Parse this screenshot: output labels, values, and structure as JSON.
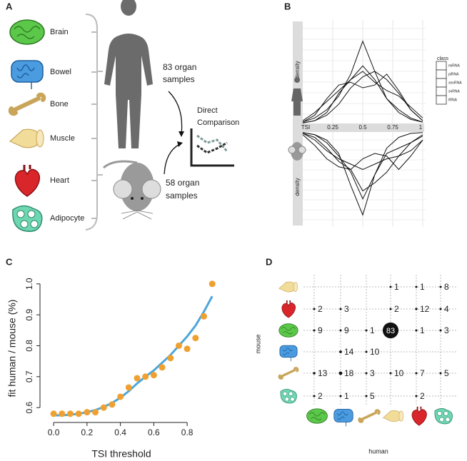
{
  "panel_labels": [
    "A",
    "B",
    "C",
    "D"
  ],
  "diagram": {
    "organs": [
      "Brain",
      "Bowel",
      "Bone",
      "Muscle",
      "Heart",
      "Adipocyte"
    ],
    "human_label": [
      "83 organ",
      "samples"
    ],
    "mouse_label": [
      "58 organ",
      "samples"
    ],
    "comparison_label": [
      "Direct",
      "Comparison"
    ]
  },
  "chart_data": [
    {
      "type": "mirrored-density",
      "xlabel": "TSI",
      "ylabel": "density",
      "mirror_ylabel": "density",
      "legend_title": "class",
      "grid": true,
      "x": [
        0,
        0.1,
        0.2,
        0.3,
        0.4,
        0.5,
        0.6,
        0.7,
        0.8,
        0.9,
        1
      ],
      "xlim": [
        0,
        1
      ],
      "xticks": [
        0.25,
        0.5,
        0.75,
        1
      ],
      "ylim": [
        0,
        3.2
      ],
      "series": [
        {
          "name": "miRNA",
          "color": "#111111",
          "values": [
            0.05,
            0.2,
            0.5,
            1.0,
            1.8,
            3.0,
            1.9,
            0.9,
            0.4,
            0.15,
            0.05
          ],
          "mirror_values": [
            0.02,
            0.1,
            0.3,
            0.8,
            2.0,
            3.1,
            1.6,
            0.6,
            0.2,
            0.05,
            0.02
          ]
        },
        {
          "name": "piRNA",
          "color": "#111111",
          "values": [
            0.02,
            0.1,
            0.4,
            1.1,
            1.6,
            1.9,
            1.5,
            1.2,
            1.0,
            0.6,
            0.2
          ],
          "mirror_values": [
            0.05,
            0.2,
            0.6,
            1.1,
            1.4,
            2.2,
            1.9,
            1.5,
            0.9,
            0.4,
            0.1
          ]
        },
        {
          "name": "snoRNA",
          "color": "#111111",
          "values": [
            0.05,
            0.3,
            0.9,
            1.4,
            1.5,
            1.3,
            1.4,
            1.8,
            1.2,
            0.5,
            0.1
          ],
          "mirror_values": [
            0.05,
            0.3,
            0.7,
            1.0,
            1.2,
            1.4,
            1.2,
            1.0,
            0.9,
            0.7,
            0.3
          ]
        },
        {
          "name": "snRNA",
          "color": "#111111",
          "values": [
            0.1,
            0.4,
            0.8,
            1.2,
            1.6,
            2.1,
            1.6,
            0.9,
            0.5,
            0.2,
            0.05
          ],
          "mirror_values": [
            0.1,
            0.5,
            1.0,
            1.3,
            1.4,
            1.0,
            0.8,
            0.9,
            1.4,
            0.9,
            0.3
          ]
        },
        {
          "name": "tRNA",
          "color": "#111111",
          "values": [
            0.02,
            0.1,
            0.3,
            0.7,
            1.3,
            1.7,
            1.9,
            1.6,
            1.1,
            0.5,
            0.1
          ],
          "mirror_values": [
            0.02,
            0.1,
            0.4,
            0.9,
            1.5,
            2.5,
            1.6,
            0.8,
            0.6,
            0.4,
            0.15
          ]
        }
      ]
    },
    {
      "type": "scatter-fit",
      "xlabel": "TSI threshold",
      "ylabel": "fit human / mouse (%)",
      "x": [
        0,
        0.05,
        0.1,
        0.15,
        0.2,
        0.25,
        0.3,
        0.35,
        0.4,
        0.45,
        0.5,
        0.55,
        0.6,
        0.65,
        0.7,
        0.75,
        0.8,
        0.85,
        0.9,
        0.95
      ],
      "xlim": [
        -0.056,
        0.962
      ],
      "ylim": [
        0.568,
        1.018
      ],
      "xticks": [
        {
          "value": 0,
          "label": "0.0"
        },
        0.2,
        0.4,
        0.6,
        0.8
      ],
      "yticks": [
        0.6,
        0.7,
        0.8,
        0.9,
        {
          "value": 1,
          "label": "1.0"
        }
      ],
      "series": [
        {
          "name": "observed",
          "color": "#f0a030",
          "values": [
            0.58,
            0.58,
            0.58,
            0.58,
            0.585,
            0.585,
            0.6,
            0.61,
            0.635,
            0.665,
            0.695,
            0.7,
            0.705,
            0.73,
            0.76,
            0.8,
            0.79,
            0.825,
            0.895,
            1.0
          ]
        },
        {
          "name": "fit",
          "color": "#4da6d9",
          "values": [
            0.575,
            0.575,
            0.577,
            0.58,
            0.585,
            0.592,
            0.602,
            0.615,
            0.632,
            0.653,
            0.678,
            0.7,
            0.72,
            0.745,
            0.77,
            0.8,
            0.83,
            0.865,
            0.91,
            0.96
          ]
        }
      ]
    },
    {
      "type": "dot-matrix",
      "xlabel": "human",
      "ylabel": "mouse",
      "x_categories": [
        null,
        null,
        null,
        null,
        null,
        null
      ],
      "y_categories": [
        null,
        null,
        null,
        null,
        null,
        null
      ],
      "values": [
        [
          null,
          null,
          null,
          1,
          1,
          8
        ],
        [
          2,
          3,
          null,
          2,
          12,
          4
        ],
        [
          9,
          9,
          1,
          83,
          1,
          3
        ],
        [
          null,
          14,
          10,
          null,
          null,
          null
        ],
        [
          13,
          18,
          3,
          10,
          7,
          5
        ],
        [
          2,
          1,
          5,
          null,
          2,
          null
        ]
      ]
    }
  ]
}
